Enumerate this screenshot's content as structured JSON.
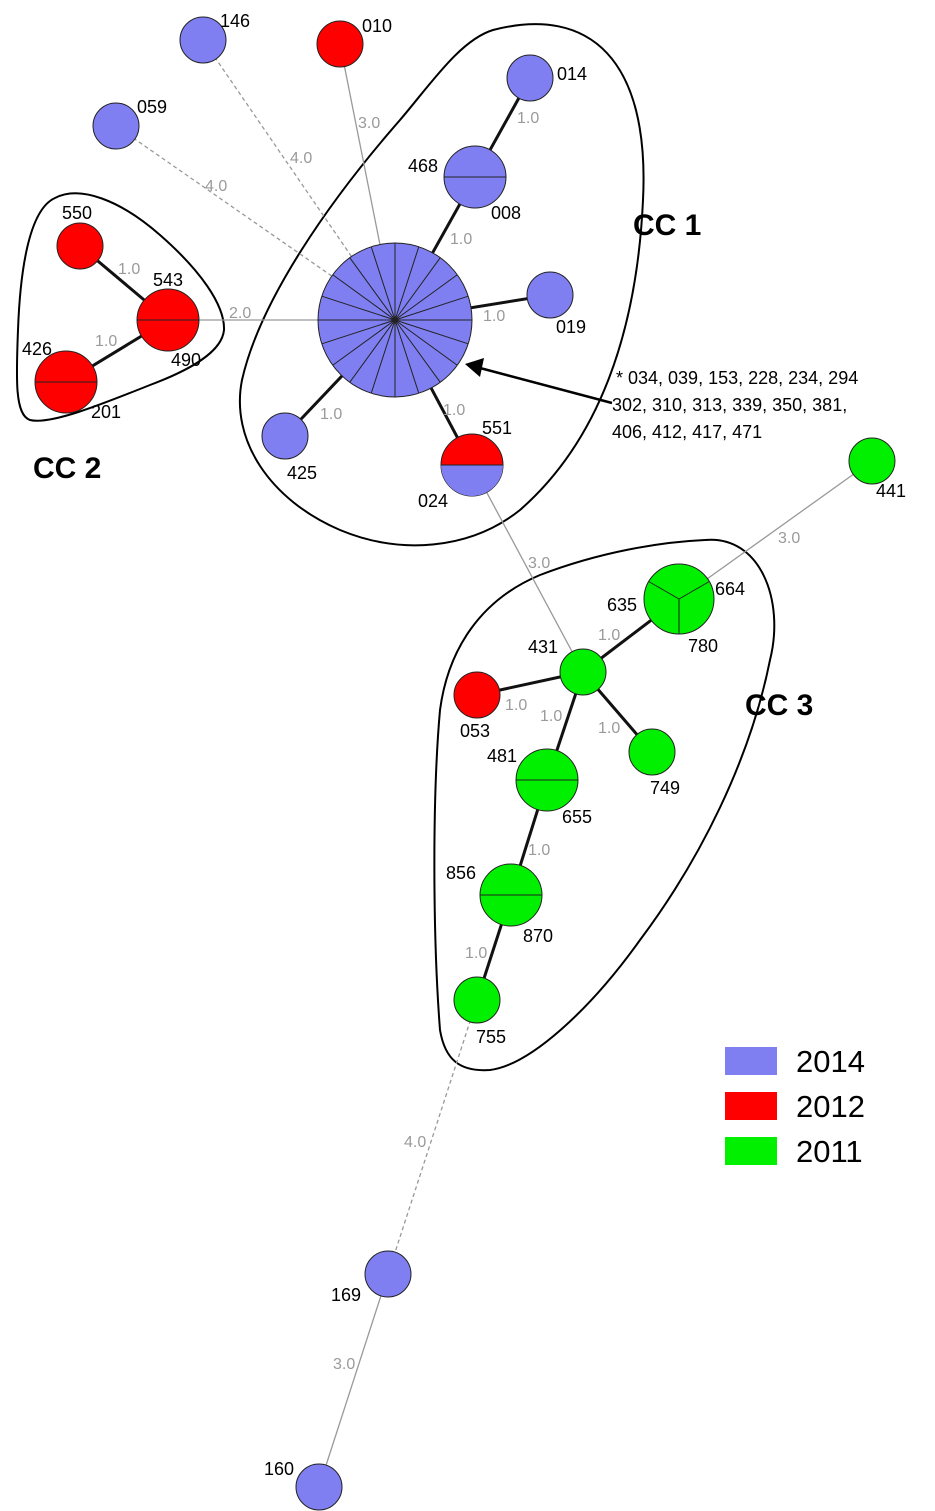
{
  "colors": {
    "2014": "#7f7ff2",
    "2012": "#ff0000",
    "2011": "#00f000"
  },
  "nodes": [
    {
      "id": "central",
      "year": "2014",
      "labels": []
    },
    {
      "id": "146",
      "year": "2014",
      "labels": [
        "146"
      ]
    },
    {
      "id": "010",
      "year": "2012",
      "labels": [
        "010"
      ]
    },
    {
      "id": "059",
      "year": "2014",
      "labels": [
        "059"
      ]
    },
    {
      "id": "014",
      "year": "2014",
      "labels": [
        "014"
      ]
    },
    {
      "id": "468-008",
      "year": "2014",
      "labels": [
        "468",
        "008"
      ]
    },
    {
      "id": "019",
      "year": "2014",
      "labels": [
        "019"
      ]
    },
    {
      "id": "425",
      "year": "2014",
      "labels": [
        "425"
      ]
    },
    {
      "id": "551-024",
      "year": "2012",
      "year2": "2014",
      "labels": [
        "551",
        "024"
      ]
    },
    {
      "id": "550",
      "year": "2012",
      "labels": [
        "550"
      ]
    },
    {
      "id": "543-490",
      "year": "2012",
      "labels": [
        "543",
        "490"
      ]
    },
    {
      "id": "426-201",
      "year": "2012",
      "labels": [
        "426",
        "201"
      ]
    },
    {
      "id": "441",
      "year": "2011",
      "labels": [
        "441"
      ]
    },
    {
      "id": "635-664-780",
      "year": "2011",
      "labels": [
        "635",
        "664",
        "780"
      ]
    },
    {
      "id": "431",
      "year": "2011",
      "labels": [
        "431"
      ]
    },
    {
      "id": "053",
      "year": "2012",
      "labels": [
        "053"
      ]
    },
    {
      "id": "749",
      "year": "2011",
      "labels": [
        "749"
      ]
    },
    {
      "id": "481-655",
      "year": "2011",
      "labels": [
        "481",
        "655"
      ]
    },
    {
      "id": "856-870",
      "year": "2011",
      "labels": [
        "856",
        "870"
      ]
    },
    {
      "id": "755",
      "year": "2011",
      "labels": [
        "755"
      ]
    },
    {
      "id": "169",
      "year": "2014",
      "labels": [
        "169"
      ]
    },
    {
      "id": "160",
      "year": "2014",
      "labels": [
        "160"
      ]
    }
  ],
  "edges": [
    {
      "source": "central",
      "target": "146",
      "label": "4.0",
      "style": "dashed"
    },
    {
      "source": "central",
      "target": "059",
      "label": "4.0",
      "style": "dashed"
    },
    {
      "source": "central",
      "target": "010",
      "label": "3.0",
      "style": "thin"
    },
    {
      "source": "central",
      "target": "468-008",
      "label": "1.0",
      "style": "solid"
    },
    {
      "source": "468-008",
      "target": "014",
      "label": "1.0",
      "style": "solid"
    },
    {
      "source": "central",
      "target": "019",
      "label": "1.0",
      "style": "solid"
    },
    {
      "source": "central",
      "target": "425",
      "label": "1.0",
      "style": "solid"
    },
    {
      "source": "central",
      "target": "551-024",
      "label": "1.0",
      "style": "solid"
    },
    {
      "source": "central",
      "target": "543-490",
      "label": "2.0",
      "style": "thin"
    },
    {
      "source": "550",
      "target": "543-490",
      "label": "1.0",
      "style": "solid"
    },
    {
      "source": "543-490",
      "target": "426-201",
      "label": "1.0",
      "style": "solid"
    },
    {
      "source": "551-024",
      "target": "431",
      "label": "3.0",
      "style": "thin"
    },
    {
      "source": "441",
      "target": "635-664-780",
      "label": "3.0",
      "style": "thin"
    },
    {
      "source": "431",
      "target": "635-664-780",
      "label": "1.0",
      "style": "solid"
    },
    {
      "source": "431",
      "target": "053",
      "label": "1.0",
      "style": "solid"
    },
    {
      "source": "431",
      "target": "749",
      "label": "1.0",
      "style": "solid"
    },
    {
      "source": "431",
      "target": "481-655",
      "label": "1.0",
      "style": "solid"
    },
    {
      "source": "481-655",
      "target": "856-870",
      "label": "1.0",
      "style": "solid"
    },
    {
      "source": "856-870",
      "target": "755",
      "label": "1.0",
      "style": "solid"
    },
    {
      "source": "755",
      "target": "169",
      "label": "4.0",
      "style": "dashed"
    },
    {
      "source": "169",
      "target": "160",
      "label": "3.0",
      "style": "thin"
    }
  ],
  "clusters": [
    {
      "id": "cc1",
      "label": "CC 1"
    },
    {
      "id": "cc2",
      "label": "CC 2"
    },
    {
      "id": "cc3",
      "label": "CC 3"
    }
  ],
  "annotation": {
    "lines": [
      "* 034, 039, 153, 228, 234, 294",
      "302, 310, 313, 339, 350, 381,",
      "406, 412, 417, 471"
    ]
  },
  "legend": [
    {
      "label": "2014",
      "color": "#7f7ff2"
    },
    {
      "label": "2012",
      "color": "#ff0000"
    },
    {
      "label": "2011",
      "color": "#00f000"
    }
  ]
}
